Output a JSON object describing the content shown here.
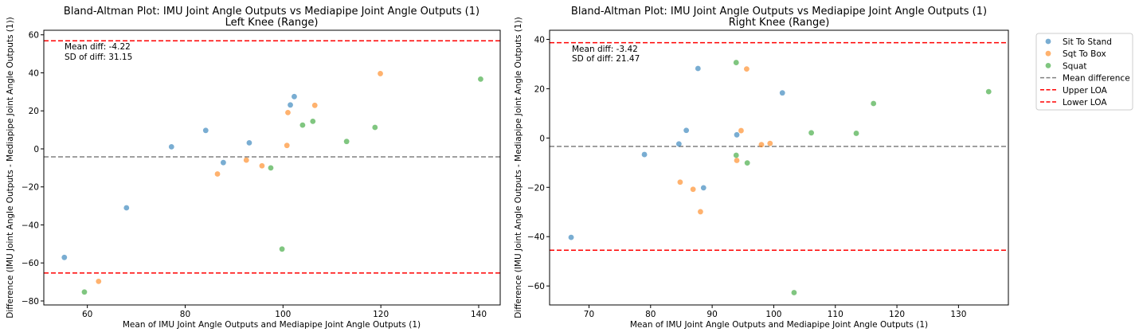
{
  "colors": {
    "sit_to_stand": "#1f77b4",
    "sqt_to_box": "#ff7f0e",
    "squat": "#2ca02c",
    "mean_line": "#808080",
    "loa_line": "#ff0000"
  },
  "legend": {
    "items": [
      {
        "label": "Sit To Stand",
        "kind": "marker",
        "color": "#1f77b4"
      },
      {
        "label": "Sqt To Box",
        "kind": "marker",
        "color": "#ff7f0e"
      },
      {
        "label": "Squat",
        "kind": "marker",
        "color": "#2ca02c"
      },
      {
        "label": "Mean difference",
        "kind": "line",
        "color": "#808080"
      },
      {
        "label": "Upper LOA",
        "kind": "line",
        "color": "#ff0000"
      },
      {
        "label": "Lower LOA",
        "kind": "line",
        "color": "#ff0000"
      }
    ]
  },
  "chart_data": [
    {
      "type": "scatter",
      "title": "Bland-Altman Plot: IMU Joint Angle Outputs vs Mediapipe Joint Angle Outputs (1)",
      "subtitle": "Left Knee (Range)",
      "xlabel": "Mean of IMU Joint Angle Outputs and Mediapipe Joint Angle Outputs (1)",
      "ylabel": "Difference (IMU Joint Angle Outputs - Mediapipe Joint Angle Outputs (1))",
      "xlim": [
        51.1,
        144.4
      ],
      "ylim": [
        -82.1,
        62.4
      ],
      "xticks": [
        60,
        80,
        100,
        120,
        140
      ],
      "yticks": [
        -80,
        -60,
        -40,
        -20,
        0,
        20,
        40,
        60
      ],
      "mean_diff": -4.22,
      "upper_loa": 56.83,
      "lower_loa": -65.27,
      "annotation": [
        "Mean diff: -4.22",
        "SD of diff: 31.15"
      ],
      "series": [
        {
          "name": "Sit To Stand",
          "points": [
            [
              55.3,
              -57.1
            ],
            [
              68.0,
              -31.0
            ],
            [
              77.2,
              1.1
            ],
            [
              84.2,
              9.7
            ],
            [
              87.8,
              -7.2
            ],
            [
              93.1,
              3.2
            ],
            [
              101.5,
              23.1
            ],
            [
              102.3,
              27.5
            ]
          ]
        },
        {
          "name": "Sqt To Box",
          "points": [
            [
              62.3,
              -69.7
            ],
            [
              86.6,
              -13.2
            ],
            [
              92.5,
              -5.9
            ],
            [
              95.7,
              -8.9
            ],
            [
              100.8,
              1.8
            ],
            [
              101.0,
              19.1
            ],
            [
              106.5,
              22.9
            ],
            [
              119.9,
              39.6
            ]
          ]
        },
        {
          "name": "Squat",
          "points": [
            [
              59.4,
              -75.3
            ],
            [
              97.5,
              -10.0
            ],
            [
              99.8,
              -52.7
            ],
            [
              104.0,
              12.5
            ],
            [
              106.1,
              14.5
            ],
            [
              113.0,
              3.9
            ],
            [
              118.8,
              11.3
            ],
            [
              140.4,
              36.7
            ]
          ]
        }
      ]
    },
    {
      "type": "scatter",
      "title": "Bland-Altman Plot: IMU Joint Angle Outputs vs Mediapipe Joint Angle Outputs (1)",
      "subtitle": "Right Knee (Range)",
      "xlabel": "Mean of IMU Joint Angle Outputs and Mediapipe Joint Angle Outputs (1)",
      "ylabel": "Difference (IMU Joint Angle Outputs - Mediapipe Joint Angle Outputs (1))",
      "xlim": [
        63.6,
        138.1
      ],
      "ylim": [
        -67.7,
        43.7
      ],
      "xticks": [
        70,
        80,
        90,
        100,
        110,
        120,
        130
      ],
      "yticks": [
        -60,
        -40,
        -20,
        0,
        20,
        40
      ],
      "mean_diff": -3.42,
      "upper_loa": 38.66,
      "lower_loa": -45.5,
      "annotation": [
        "Mean diff: -3.42",
        "SD of diff: 21.47"
      ],
      "series": [
        {
          "name": "Sit To Stand",
          "points": [
            [
              67.1,
              -40.3
            ],
            [
              79.0,
              -6.7
            ],
            [
              84.6,
              -2.4
            ],
            [
              85.8,
              3.1
            ],
            [
              87.7,
              28.2
            ],
            [
              88.6,
              -20.2
            ],
            [
              94.0,
              1.3
            ],
            [
              101.4,
              18.3
            ]
          ]
        },
        {
          "name": "Sqt To Box",
          "points": [
            [
              84.8,
              -17.9
            ],
            [
              86.9,
              -20.8
            ],
            [
              88.1,
              -29.9
            ],
            [
              94.0,
              -9.1
            ],
            [
              94.7,
              3.0
            ],
            [
              95.6,
              28.0
            ],
            [
              98.0,
              -2.7
            ],
            [
              99.4,
              -2.2
            ]
          ]
        },
        {
          "name": "Squat",
          "points": [
            [
              93.9,
              30.6
            ],
            [
              93.9,
              -7.0
            ],
            [
              95.7,
              -10.1
            ],
            [
              103.3,
              -62.7
            ],
            [
              106.1,
              2.1
            ],
            [
              113.4,
              1.9
            ],
            [
              116.2,
              14.0
            ],
            [
              134.9,
              18.8
            ]
          ]
        }
      ]
    }
  ]
}
